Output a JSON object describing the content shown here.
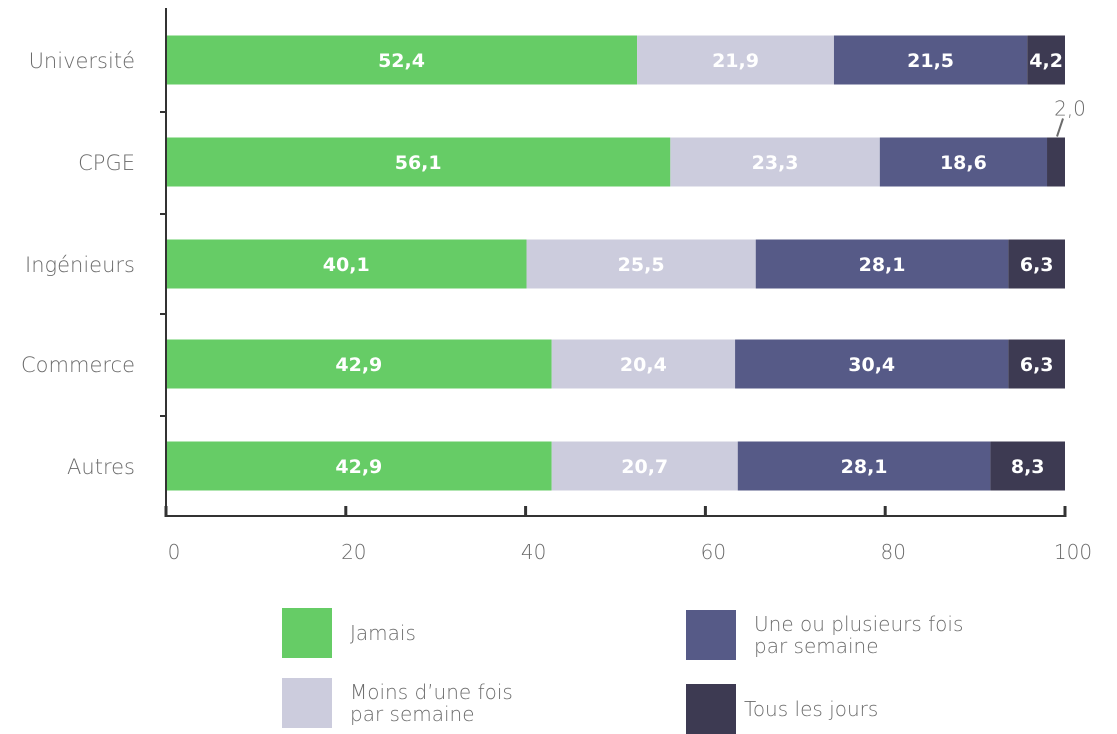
{
  "chart_data": {
    "type": "bar",
    "orientation": "horizontal",
    "stacked": true,
    "categories": [
      "Université",
      "CPGE",
      "Ingénieurs",
      "Commerce",
      "Autres"
    ],
    "series": [
      {
        "name": "Jamais",
        "color": "#66cc66",
        "values": [
          52.4,
          56.1,
          40.1,
          42.9,
          42.9
        ],
        "labels": [
          "52,4",
          "56,1",
          "40,1",
          "42,9",
          "42,9"
        ]
      },
      {
        "name": "Moins d’une fois par semaine",
        "color": "#ccccdd",
        "values": [
          21.9,
          23.3,
          25.5,
          20.4,
          20.7
        ],
        "labels": [
          "21,9",
          "23,3",
          "25,5",
          "20,4",
          "20,7"
        ]
      },
      {
        "name": "Une ou plusieurs fois par semaine",
        "color": "#565a87",
        "values": [
          21.5,
          18.6,
          28.1,
          30.4,
          28.1
        ],
        "labels": [
          "21,5",
          "18,6",
          "28,1",
          "30,4",
          "28,1"
        ]
      },
      {
        "name": "Tous les jours",
        "color": "#3d3a52",
        "values": [
          4.2,
          2.0,
          6.3,
          6.3,
          8.3
        ],
        "labels": [
          "4,2",
          "2,0",
          "6,3",
          "6,3",
          "8,3"
        ]
      }
    ],
    "xlim": [
      0,
      100
    ],
    "xticks": [
      "0",
      "20",
      "40",
      "60",
      "80",
      "100"
    ],
    "xlabel": "",
    "ylabel": "",
    "title": "",
    "grid": false,
    "legend_position": "bottom"
  },
  "legend": {
    "items": [
      {
        "label": "Jamais",
        "color": "#66cc66"
      },
      {
        "label": "Moins d’une fois\npar semaine",
        "color": "#ccccdd"
      },
      {
        "label": "Une ou plusieurs fois\npar semaine",
        "color": "#565a87"
      },
      {
        "label": "Tous les jours",
        "color": "#3d3a52"
      }
    ]
  }
}
